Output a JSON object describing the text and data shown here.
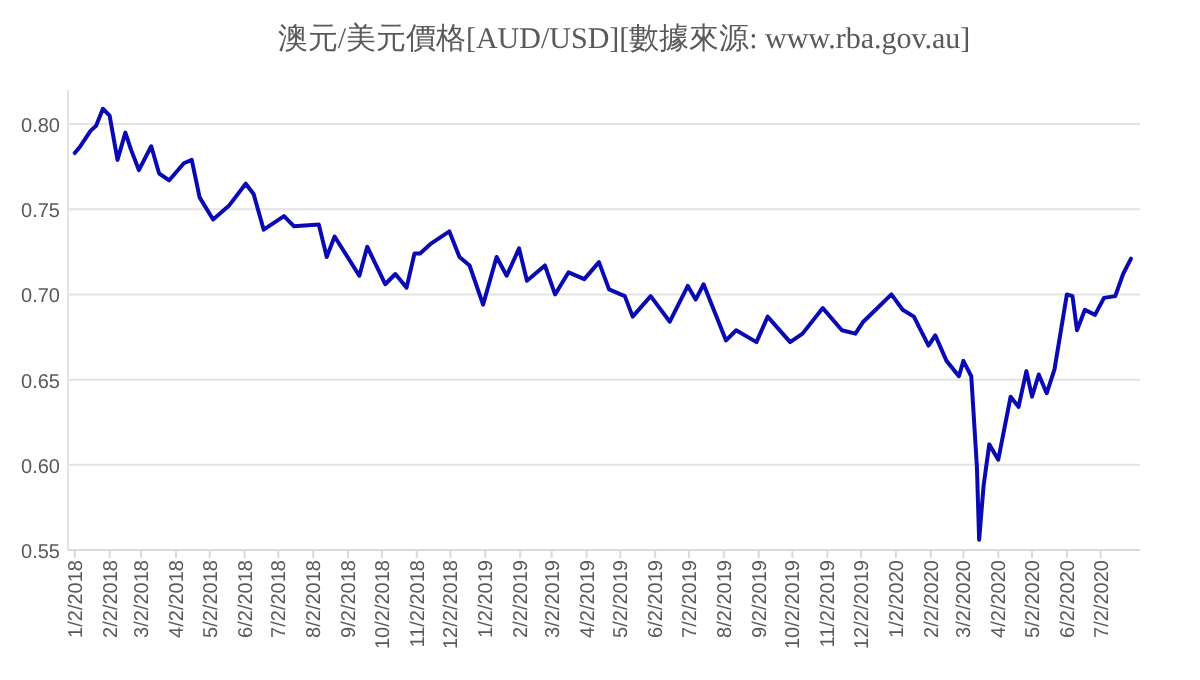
{
  "chart_data": {
    "type": "line",
    "title": "澳元/美元價格[AUD/USD][數據來源: www.rba.gov.au]",
    "x": [
      "2018-01-02",
      "2018-01-07",
      "2018-01-16",
      "2018-01-21",
      "2018-01-27",
      "2018-02-02",
      "2018-02-09",
      "2018-02-16",
      "2018-02-21",
      "2018-02-28",
      "2018-03-11",
      "2018-03-18",
      "2018-03-27",
      "2018-04-09",
      "2018-04-16",
      "2018-04-23",
      "2018-05-05",
      "2018-05-19",
      "2018-06-03",
      "2018-06-10",
      "2018-06-19",
      "2018-07-07",
      "2018-07-16",
      "2018-08-07",
      "2018-08-14",
      "2018-08-21",
      "2018-09-12",
      "2018-09-19",
      "2018-10-05",
      "2018-10-14",
      "2018-10-24",
      "2018-10-31",
      "2018-11-05",
      "2018-11-15",
      "2018-12-01",
      "2018-12-10",
      "2018-12-19",
      "2018-12-31",
      "2019-01-12",
      "2019-01-21",
      "2019-02-01",
      "2019-02-08",
      "2019-02-24",
      "2019-03-05",
      "2019-03-17",
      "2019-03-31",
      "2019-04-13",
      "2019-04-22",
      "2019-05-06",
      "2019-05-13",
      "2019-05-29",
      "2019-06-15",
      "2019-07-01",
      "2019-07-08",
      "2019-07-15",
      "2019-08-04",
      "2019-08-13",
      "2019-08-31",
      "2019-09-10",
      "2019-09-30",
      "2019-10-11",
      "2019-10-29",
      "2019-11-15",
      "2019-11-27",
      "2019-12-04",
      "2019-12-15",
      "2019-12-29",
      "2020-01-08",
      "2020-01-18",
      "2020-01-31",
      "2020-02-06",
      "2020-02-16",
      "2020-02-27",
      "2020-03-02",
      "2020-03-09",
      "2020-03-14",
      "2020-03-16",
      "2020-03-20",
      "2020-03-25",
      "2020-04-02",
      "2020-04-13",
      "2020-04-20",
      "2020-04-27",
      "2020-05-02",
      "2020-05-08",
      "2020-05-15",
      "2020-05-22",
      "2020-06-02",
      "2020-06-07",
      "2020-06-11",
      "2020-06-18",
      "2020-06-27",
      "2020-07-05",
      "2020-07-15",
      "2020-07-22",
      "2020-07-29"
    ],
    "series": [
      {
        "color": "#0a0ab4",
        "values": [
          0.783,
          0.787,
          0.796,
          0.799,
          0.809,
          0.805,
          0.779,
          0.795,
          0.785,
          0.773,
          0.787,
          0.771,
          0.767,
          0.777,
          0.779,
          0.757,
          0.744,
          0.752,
          0.765,
          0.759,
          0.738,
          0.746,
          0.74,
          0.741,
          0.722,
          0.734,
          0.711,
          0.728,
          0.706,
          0.712,
          0.704,
          0.724,
          0.724,
          0.73,
          0.737,
          0.722,
          0.717,
          0.694,
          0.722,
          0.711,
          0.727,
          0.708,
          0.717,
          0.7,
          0.713,
          0.709,
          0.719,
          0.703,
          0.699,
          0.687,
          0.699,
          0.684,
          0.705,
          0.697,
          0.706,
          0.673,
          0.679,
          0.672,
          0.687,
          0.672,
          0.677,
          0.692,
          0.679,
          0.677,
          0.684,
          0.691,
          0.7,
          0.691,
          0.687,
          0.67,
          0.676,
          0.661,
          0.652,
          0.661,
          0.652,
          0.599,
          0.556,
          0.588,
          0.612,
          0.603,
          0.64,
          0.634,
          0.655,
          0.64,
          0.653,
          0.642,
          0.656,
          0.7,
          0.699,
          0.679,
          0.691,
          0.688,
          0.698,
          0.699,
          0.712,
          0.721
        ]
      }
    ],
    "xlim": [
      "2017-12-27",
      "2020-08-06"
    ],
    "ylim": [
      0.55,
      0.82
    ],
    "yticks": [
      {
        "value": 0.55,
        "label": "0.55"
      },
      {
        "value": 0.6,
        "label": "0.60"
      },
      {
        "value": 0.65,
        "label": "0.65"
      },
      {
        "value": 0.7,
        "label": "0.70"
      },
      {
        "value": 0.75,
        "label": "0.75"
      },
      {
        "value": 0.8,
        "label": "0.80"
      }
    ],
    "xticks": [
      {
        "value": "2018-01-02",
        "label": "1/2/2018"
      },
      {
        "value": "2018-02-02",
        "label": "2/2/2018"
      },
      {
        "value": "2018-03-02",
        "label": "3/2/2018"
      },
      {
        "value": "2018-04-02",
        "label": "4/2/2018"
      },
      {
        "value": "2018-05-02",
        "label": "5/2/2018"
      },
      {
        "value": "2018-06-02",
        "label": "6/2/2018"
      },
      {
        "value": "2018-07-02",
        "label": "7/2/2018"
      },
      {
        "value": "2018-08-02",
        "label": "8/2/2018"
      },
      {
        "value": "2018-09-02",
        "label": "9/2/2018"
      },
      {
        "value": "2018-10-02",
        "label": "10/2/2018"
      },
      {
        "value": "2018-11-02",
        "label": "11/2/2018"
      },
      {
        "value": "2018-12-02",
        "label": "12/2/2018"
      },
      {
        "value": "2019-01-02",
        "label": "1/2/2019"
      },
      {
        "value": "2019-02-02",
        "label": "2/2/2019"
      },
      {
        "value": "2019-03-02",
        "label": "3/2/2019"
      },
      {
        "value": "2019-04-02",
        "label": "4/2/2019"
      },
      {
        "value": "2019-05-02",
        "label": "5/2/2019"
      },
      {
        "value": "2019-06-02",
        "label": "6/2/2019"
      },
      {
        "value": "2019-07-02",
        "label": "7/2/2019"
      },
      {
        "value": "2019-08-02",
        "label": "8/2/2019"
      },
      {
        "value": "2019-09-02",
        "label": "9/2/2019"
      },
      {
        "value": "2019-10-02",
        "label": "10/2/2019"
      },
      {
        "value": "2019-11-02",
        "label": "11/2/2019"
      },
      {
        "value": "2019-12-02",
        "label": "12/2/2019"
      },
      {
        "value": "2020-01-02",
        "label": "1/2/2020"
      },
      {
        "value": "2020-02-02",
        "label": "2/2/2020"
      },
      {
        "value": "2020-03-02",
        "label": "3/2/2020"
      },
      {
        "value": "2020-04-02",
        "label": "4/2/2020"
      },
      {
        "value": "2020-05-02",
        "label": "5/2/2020"
      },
      {
        "value": "2020-06-02",
        "label": "6/2/2020"
      },
      {
        "value": "2020-07-02",
        "label": "7/2/2020"
      }
    ],
    "grid": "y",
    "marker": "none",
    "line_style": "solid"
  }
}
